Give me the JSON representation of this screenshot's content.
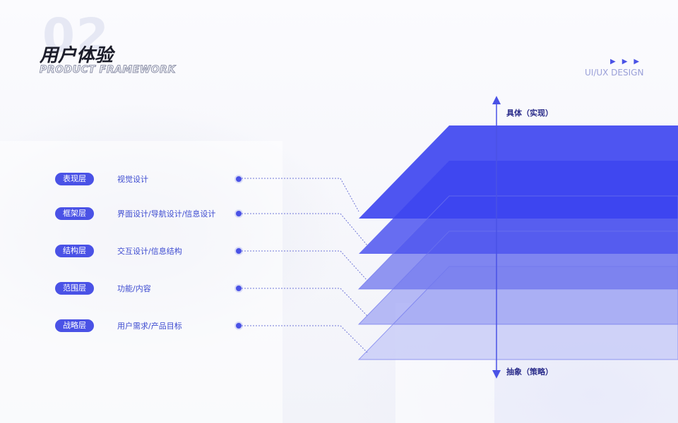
{
  "header": {
    "number": "02",
    "title": "用户体验",
    "subtitle": "PRODUCT FRAMEWORK",
    "tag": "UI/UX DESIGN",
    "arrows": "▶▶▶"
  },
  "axis": {
    "top_label": "具体（实现）",
    "bottom_label": "抽象（策略）"
  },
  "layers": [
    {
      "name": "表现层",
      "desc": "视觉设计"
    },
    {
      "name": "框架层",
      "desc": "界面设计/导航设计/信息设计"
    },
    {
      "name": "结构层",
      "desc": "交互设计/信息结构"
    },
    {
      "name": "范围层",
      "desc": "功能/内容"
    },
    {
      "name": "战略层",
      "desc": "用户需求/产品目标"
    }
  ],
  "colors": {
    "accent": "#4a52e6",
    "layer_fills": [
      "#3b43f0",
      "#4d55ee",
      "#6d74ee",
      "#9a9ff2",
      "#c9ccf7"
    ]
  }
}
